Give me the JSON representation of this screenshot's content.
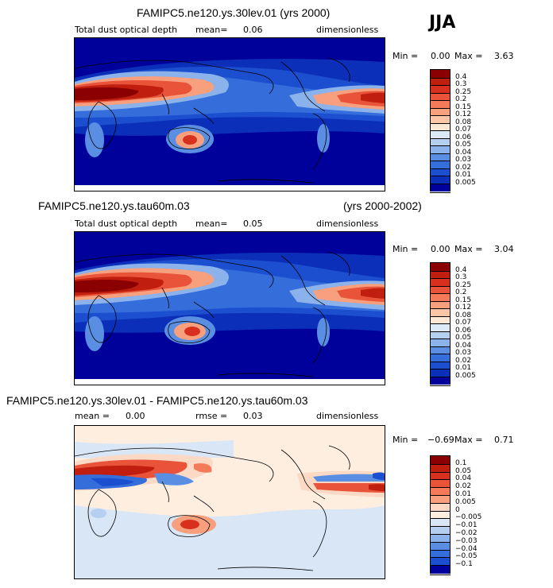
{
  "season": "JJA",
  "panels": [
    {
      "title": "FAMIPC5.ne120.ys.30lev.01 (yrs 2000)",
      "variable": "Total dust optical depth",
      "mean_label": "mean=",
      "mean_value": "0.06",
      "units": "dimensionless",
      "min_label": "Min =",
      "min_value": "0.00",
      "max_label": "Max =",
      "max_value": "3.63"
    },
    {
      "title": "FAMIPC5.ne120.ys.tau60m.03",
      "title_right": "(yrs 2000-2002)",
      "variable": "Total dust optical depth",
      "mean_label": "mean=",
      "mean_value": "0.05",
      "units": "dimensionless",
      "min_label": "Min =",
      "min_value": "0.00",
      "max_label": "Max =",
      "max_value": "3.04"
    },
    {
      "title": "FAMIPC5.ne120.ys.30lev.01 - FAMIPC5.ne120.ys.tau60m.03",
      "mean_label": "mean =",
      "mean_value": "0.00",
      "rmse_label": "rmse =",
      "rmse_value": "0.03",
      "units": "dimensionless",
      "min_label": "Min =",
      "min_value": "−0.69",
      "max_label": "Max =",
      "max_value": "0.71"
    }
  ],
  "colorbars": {
    "abs_levels": [
      "0.4",
      "0.3",
      "0.25",
      "0.2",
      "0.15",
      "0.12",
      "0.08",
      "0.07",
      "0.06",
      "0.05",
      "0.04",
      "0.03",
      "0.02",
      "0.01",
      "0.005"
    ],
    "abs_colors": [
      "#8b0000",
      "#c01f0f",
      "#d7301f",
      "#e8533a",
      "#f47a5a",
      "#f8a07e",
      "#fbc6a6",
      "#fde8d4",
      "#dce9f6",
      "#b5cff0",
      "#8bb2ea",
      "#5a8ee3",
      "#356ddb",
      "#1c4fd0",
      "#0b2fb8",
      "#00009a"
    ],
    "diff_levels": [
      "0.1",
      "0.05",
      "0.04",
      "0.02",
      "0.01",
      "0.005",
      "0",
      "−0.005",
      "−0.01",
      "−0.02",
      "−0.03",
      "−0.04",
      "−0.05",
      "−0.1"
    ],
    "diff_colors": [
      "#8b0000",
      "#c01f0f",
      "#d7301f",
      "#e8533a",
      "#f47a5a",
      "#f8a07e",
      "#fbd9c4",
      "#fdeee0",
      "#d8e6f6",
      "#b5cff0",
      "#8bb2ea",
      "#5a8ee3",
      "#356ddb",
      "#1c4fd0",
      "#00009a"
    ]
  },
  "chart_data": [
    {
      "type": "heatmap",
      "title": "FAMIPC5.ne120.ys.30lev.01 (yrs 2000)",
      "field": "Total dust optical depth",
      "season": "JJA",
      "units": "dimensionless",
      "mean": 0.06,
      "min": 0.0,
      "max": 3.63,
      "contour_levels": [
        0.005,
        0.01,
        0.02,
        0.03,
        0.04,
        0.05,
        0.06,
        0.07,
        0.08,
        0.12,
        0.15,
        0.2,
        0.25,
        0.3,
        0.4
      ]
    },
    {
      "type": "heatmap",
      "title": "FAMIPC5.ne120.ys.tau60m.03 (yrs 2000-2002)",
      "field": "Total dust optical depth",
      "season": "JJA",
      "units": "dimensionless",
      "mean": 0.05,
      "min": 0.0,
      "max": 3.04,
      "contour_levels": [
        0.005,
        0.01,
        0.02,
        0.03,
        0.04,
        0.05,
        0.06,
        0.07,
        0.08,
        0.12,
        0.15,
        0.2,
        0.25,
        0.3,
        0.4
      ]
    },
    {
      "type": "heatmap",
      "title": "FAMIPC5.ne120.ys.30lev.01 - FAMIPC5.ne120.ys.tau60m.03",
      "units": "dimensionless",
      "mean": 0.0,
      "rmse": 0.03,
      "min": -0.69,
      "max": 0.71,
      "contour_levels": [
        -0.1,
        -0.05,
        -0.04,
        -0.03,
        -0.02,
        -0.01,
        -0.005,
        0,
        0.005,
        0.01,
        0.02,
        0.04,
        0.05,
        0.1
      ]
    }
  ]
}
